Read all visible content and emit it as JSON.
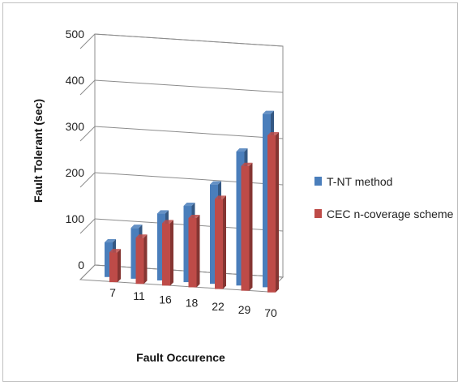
{
  "chart_data": {
    "type": "bar",
    "style": "3d-clustered-column",
    "categories": [
      "7",
      "11",
      "16",
      "18",
      "22",
      "29",
      "70"
    ],
    "series": [
      {
        "name": "T-NT method",
        "values": [
          75,
          110,
          145,
          165,
          215,
          290,
          375
        ],
        "color": "#4a7ebb"
      },
      {
        "name": "CEC n-coverage scheme",
        "values": [
          65,
          100,
          135,
          150,
          195,
          270,
          340
        ],
        "color": "#be4b48"
      }
    ],
    "xlabel": "Fault Occurence",
    "ylabel": "Fault Tolerant (sec)",
    "ylim": [
      0,
      500
    ],
    "yticks": [
      0,
      100,
      200,
      300,
      400,
      500
    ],
    "grid": true,
    "legend_position": "right"
  }
}
